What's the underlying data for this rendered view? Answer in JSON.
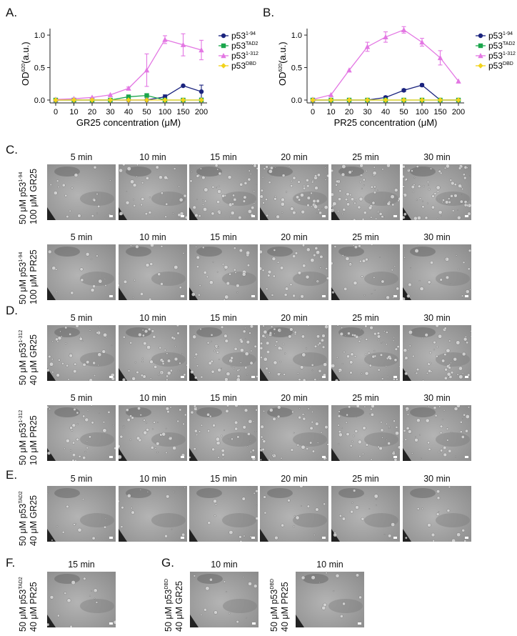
{
  "panels": {
    "A": "A.",
    "B": "B.",
    "C": "C.",
    "D": "D.",
    "E": "E.",
    "F": "F.",
    "G": "G."
  },
  "chart_data": [
    {
      "type": "line",
      "panel": "A",
      "xlabel": "GR25 concentration (μM)",
      "ylabel": "OD",
      "ylabel_sup": "620",
      "ylabel_unit": "(a.u.)",
      "categories": [
        "0",
        "10",
        "20",
        "30",
        "40",
        "50",
        "100",
        "150",
        "200"
      ],
      "ylim": [
        0,
        1.1
      ],
      "yticks": [
        "0.0",
        "0.5",
        "1.0"
      ],
      "ytick_values": [
        0,
        0.5,
        1.0
      ],
      "series": [
        {
          "name": "p53",
          "sup": "1-94",
          "color": "#1a237e",
          "marker": "circle",
          "values": [
            0,
            0,
            0,
            0,
            0,
            0,
            0.05,
            0.22,
            0.13
          ],
          "err": [
            0,
            0,
            0,
            0,
            0,
            0,
            0.03,
            0.01,
            0.1
          ]
        },
        {
          "name": "p53",
          "sup": "TAD2",
          "color": "#1aa64b",
          "marker": "square",
          "values": [
            0,
            0,
            0,
            0,
            0.05,
            0.07,
            0.0,
            0.0,
            0.0
          ],
          "err": [
            0,
            0,
            0,
            0,
            0,
            0,
            0,
            0,
            0
          ]
        },
        {
          "name": "p53",
          "sup": "1-312",
          "color": "#e377e3",
          "marker": "triangle",
          "values": [
            0.01,
            0.02,
            0.04,
            0.08,
            0.18,
            0.46,
            0.93,
            0.85,
            0.77
          ],
          "err": [
            0,
            0,
            0,
            0,
            0.02,
            0.25,
            0.06,
            0.17,
            0.15
          ]
        },
        {
          "name": "p53",
          "sup": "DBD",
          "color": "#f2d31b",
          "marker": "diamond",
          "values": [
            0,
            0,
            0,
            0,
            0,
            0,
            0,
            0,
            0
          ],
          "err": [
            0,
            0,
            0,
            0,
            0,
            0,
            0,
            0,
            0
          ]
        }
      ]
    },
    {
      "type": "line",
      "panel": "B",
      "xlabel": "PR25 concentration (μM)",
      "ylabel": "OD",
      "ylabel_sup": "620",
      "ylabel_unit": "(a.u.)",
      "categories": [
        "0",
        "10",
        "20",
        "30",
        "40",
        "50",
        "100",
        "150",
        "200"
      ],
      "ylim": [
        0,
        1.1
      ],
      "yticks": [
        "0.0",
        "0.5",
        "1.0"
      ],
      "ytick_values": [
        0,
        0.5,
        1.0
      ],
      "series": [
        {
          "name": "p53",
          "sup": "1-94",
          "color": "#1a237e",
          "marker": "circle",
          "values": [
            0,
            0,
            0,
            0,
            0.04,
            0.15,
            0.23,
            0,
            0
          ],
          "err": [
            0,
            0,
            0,
            0,
            0.02,
            0.02,
            0.02,
            0,
            0
          ]
        },
        {
          "name": "p53",
          "sup": "TAD2",
          "color": "#1aa64b",
          "marker": "square",
          "values": [
            0,
            0,
            0,
            0,
            0,
            0,
            0,
            0,
            0
          ],
          "err": [
            0,
            0,
            0,
            0,
            0,
            0,
            0,
            0,
            0
          ]
        },
        {
          "name": "p53",
          "sup": "1-312",
          "color": "#e377e3",
          "marker": "triangle",
          "values": [
            0.01,
            0.08,
            0.46,
            0.82,
            0.97,
            1.08,
            0.89,
            0.65,
            0.29
          ],
          "err": [
            0,
            0,
            0,
            0.07,
            0.08,
            0.05,
            0.06,
            0.11,
            0
          ]
        },
        {
          "name": "p53",
          "sup": "DBD",
          "color": "#f2d31b",
          "marker": "diamond",
          "values": [
            0,
            0,
            0,
            0,
            0,
            0,
            0,
            0,
            0
          ],
          "err": [
            0,
            0,
            0,
            0,
            0,
            0,
            0,
            0,
            0
          ]
        }
      ]
    }
  ],
  "rows": [
    {
      "id": "C1",
      "label1": "50 μM p53",
      "label1_sup": "1-94",
      "label2": "100 μM GR25",
      "times": [
        "5 min",
        "10 min",
        "15 min",
        "20 min",
        "25 min",
        "30 min"
      ]
    },
    {
      "id": "C2",
      "label1": "50 μM p53",
      "label1_sup": "1-94",
      "label2": "100 μM PR25",
      "times": [
        "5 min",
        "10 min",
        "15 min",
        "20 min",
        "25 min",
        "30 min"
      ]
    },
    {
      "id": "D1",
      "label1": "50 μM p53",
      "label1_sup": "1-312",
      "label2": "40 μM GR25",
      "times": [
        "5 min",
        "10 min",
        "15 min",
        "20 min",
        "25 min",
        "30 min"
      ]
    },
    {
      "id": "D2",
      "label1": "50 μM p53",
      "label1_sup": "1-312",
      "label2": "10 μM PR25",
      "times": [
        "5 min",
        "10 min",
        "15 min",
        "20 min",
        "25 min",
        "30 min"
      ]
    },
    {
      "id": "E1",
      "label1": "50 μM p53",
      "label1_sup": "TAD2",
      "label2": "40 μM GR25",
      "times": [
        "5 min",
        "10 min",
        "15 min",
        "20 min",
        "25 min",
        "30 min"
      ]
    }
  ],
  "bottom": {
    "F": {
      "label1": "50 μM p53",
      "label1_sup": "TAD2",
      "label2": "40 μM PR25",
      "time": "15 min"
    },
    "G1": {
      "label1": "50 μM p53",
      "label1_sup": "DBD",
      "label2": "40 μM GR25",
      "time": "10 min"
    },
    "G2": {
      "label1": "50 μM p53",
      "label1_sup": "DBD",
      "label2": "40 μM PR25",
      "time": "10 min"
    }
  }
}
